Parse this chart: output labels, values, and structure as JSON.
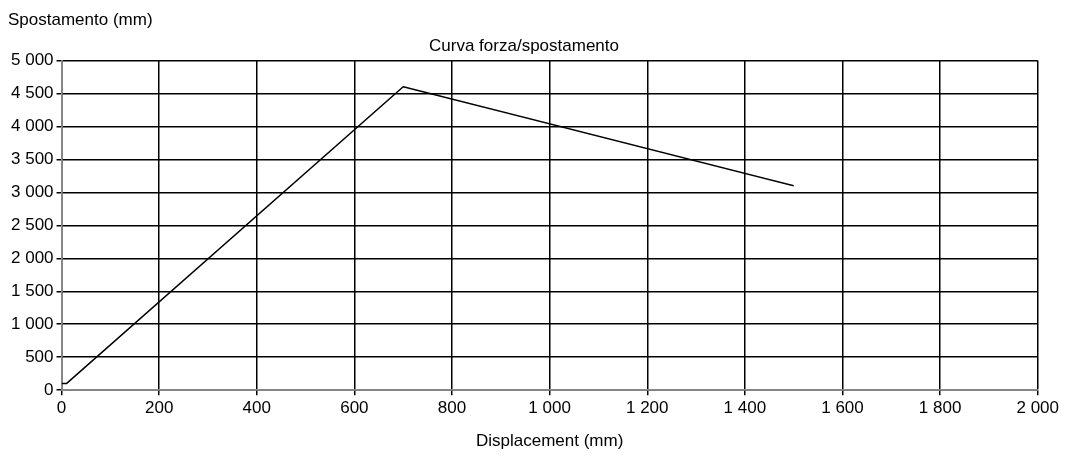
{
  "chart_data": {
    "type": "line",
    "title": "Curva forza/spostamento",
    "xlabel": "Displacement (mm)",
    "ylabel": "Spostamento (mm)",
    "x": [
      0,
      10,
      700,
      1500
    ],
    "series": [
      {
        "color": "#000000",
        "values": [
          100,
          100,
          4600,
          3100
        ]
      }
    ],
    "xlim": [
      0,
      2000
    ],
    "xticks": [
      0,
      200,
      400,
      600,
      800,
      {
        "value": 1000,
        "label": "1 000"
      },
      {
        "value": 1200,
        "label": "1 200"
      },
      {
        "value": 1400,
        "label": "1 400"
      },
      {
        "value": 1600,
        "label": "1 600"
      },
      {
        "value": 1800,
        "label": "1 800"
      },
      {
        "value": 2000,
        "label": "2 000"
      }
    ],
    "ylim": [
      0,
      5000
    ],
    "yticks": [
      0,
      500,
      {
        "value": 1000,
        "label": "1 000"
      },
      {
        "value": 1500,
        "label": "1 500"
      },
      {
        "value": 2000,
        "label": "2 000"
      },
      {
        "value": 2500,
        "label": "2 500"
      },
      {
        "value": 3000,
        "label": "3 000"
      },
      {
        "value": 3500,
        "label": "3 500"
      },
      {
        "value": 4000,
        "label": "4 000"
      },
      {
        "value": 4500,
        "label": "4 500"
      },
      {
        "value": 5000,
        "label": "5 000"
      }
    ],
    "grid": true,
    "legend": false,
    "marker": "none",
    "line_style": "solid"
  }
}
